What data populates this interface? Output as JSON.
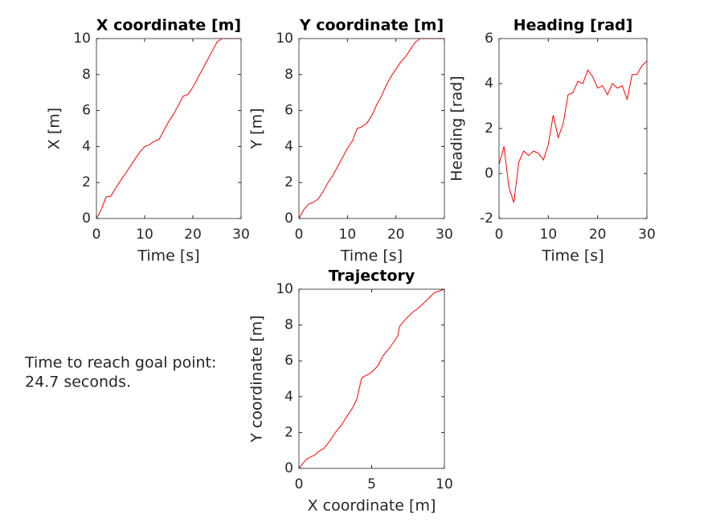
{
  "chart_data": [
    {
      "type": "line",
      "title": "X coordinate [m]",
      "x_label": "Time [s]",
      "y_label": "X [m]",
      "x": [
        0,
        1,
        2,
        3,
        4,
        5,
        6,
        7,
        8,
        9,
        10,
        11,
        12,
        13,
        14,
        15,
        16,
        17,
        18,
        19,
        20,
        21,
        22,
        23,
        24,
        25,
        26,
        27,
        28,
        29,
        30
      ],
      "series": [
        {
          "color": "#ff0000",
          "values": [
            0,
            0.5,
            1.2,
            1.25,
            1.7,
            2.1,
            2.5,
            2.9,
            3.3,
            3.7,
            4.0,
            4.1,
            4.3,
            4.4,
            4.9,
            5.4,
            5.8,
            6.3,
            6.8,
            6.9,
            7.3,
            7.8,
            8.3,
            8.8,
            9.3,
            9.8,
            10,
            10,
            10,
            10,
            10
          ]
        }
      ],
      "xlim": [
        0,
        30
      ],
      "xticks": [
        0,
        10,
        20,
        30
      ],
      "ylim": [
        0,
        10
      ],
      "yticks": [
        0,
        2,
        4,
        6,
        8,
        10
      ]
    },
    {
      "type": "line",
      "title": "Y coordinate [m]",
      "x_label": "Time [s]",
      "y_label": "Y [m]",
      "x": [
        0,
        1,
        2,
        3,
        4,
        5,
        6,
        7,
        8,
        9,
        10,
        11,
        12,
        13,
        14,
        15,
        16,
        17,
        18,
        19,
        20,
        21,
        22,
        23,
        24,
        25,
        26,
        27,
        28,
        29,
        30
      ],
      "series": [
        {
          "color": "#ff0000",
          "values": [
            0,
            0.5,
            0.8,
            0.9,
            1.1,
            1.5,
            2.0,
            2.4,
            2.9,
            3.4,
            3.9,
            4.3,
            5.0,
            5.1,
            5.3,
            5.7,
            6.3,
            6.8,
            7.4,
            7.9,
            8.3,
            8.7,
            9.0,
            9.4,
            9.8,
            10,
            10,
            10,
            10,
            10,
            10
          ]
        }
      ],
      "xlim": [
        0,
        30
      ],
      "xticks": [
        0,
        10,
        20,
        30
      ],
      "ylim": [
        0,
        10
      ],
      "yticks": [
        0,
        2,
        4,
        6,
        8,
        10
      ]
    },
    {
      "type": "line",
      "title": "Heading [rad]",
      "x_label": "Time [s]",
      "y_label": "Heading [rad]",
      "x": [
        0,
        1,
        2,
        3,
        4,
        5,
        6,
        7,
        8,
        9,
        10,
        11,
        12,
        13,
        14,
        15,
        16,
        17,
        18,
        19,
        20,
        21,
        22,
        23,
        24,
        25,
        26,
        27,
        28,
        29,
        30
      ],
      "series": [
        {
          "color": "#ff0000",
          "values": [
            0.4,
            1.2,
            -0.6,
            -1.3,
            0.5,
            1.0,
            0.8,
            1.0,
            0.9,
            0.6,
            1.3,
            2.6,
            1.6,
            2.2,
            3.5,
            3.6,
            4.1,
            4.0,
            4.6,
            4.3,
            3.8,
            3.9,
            3.5,
            4.0,
            3.8,
            3.9,
            3.3,
            4.4,
            4.4,
            4.8,
            5.0
          ]
        }
      ],
      "xlim": [
        0,
        30
      ],
      "xticks": [
        0,
        10,
        20,
        30
      ],
      "ylim": [
        -2,
        6
      ],
      "yticks": [
        -2,
        0,
        2,
        4,
        6
      ]
    },
    {
      "type": "line",
      "title": "Trajectory",
      "x_label": "X coordinate [m]",
      "y_label": "Y coordinate [m]",
      "annotation": [
        "Time to reach goal point:",
        "24.7 seconds."
      ],
      "x": [
        0,
        0.5,
        1.2,
        1.25,
        1.7,
        2.1,
        2.5,
        2.9,
        3.3,
        3.7,
        4.0,
        4.1,
        4.3,
        4.4,
        4.9,
        5.4,
        5.8,
        6.3,
        6.8,
        6.9,
        7.3,
        7.8,
        8.3,
        8.8,
        9.3,
        10
      ],
      "series": [
        {
          "color": "#ff0000",
          "values": [
            0,
            0.5,
            0.8,
            0.9,
            1.1,
            1.5,
            2.0,
            2.4,
            2.9,
            3.4,
            3.9,
            4.3,
            5.0,
            5.1,
            5.3,
            5.7,
            6.3,
            6.8,
            7.4,
            7.9,
            8.3,
            8.7,
            9.0,
            9.4,
            9.8,
            10
          ]
        }
      ],
      "xlim": [
        0,
        10
      ],
      "xticks": [
        0,
        5,
        10
      ],
      "ylim": [
        0,
        10
      ],
      "yticks": [
        0,
        2,
        4,
        6,
        8,
        10
      ]
    }
  ]
}
